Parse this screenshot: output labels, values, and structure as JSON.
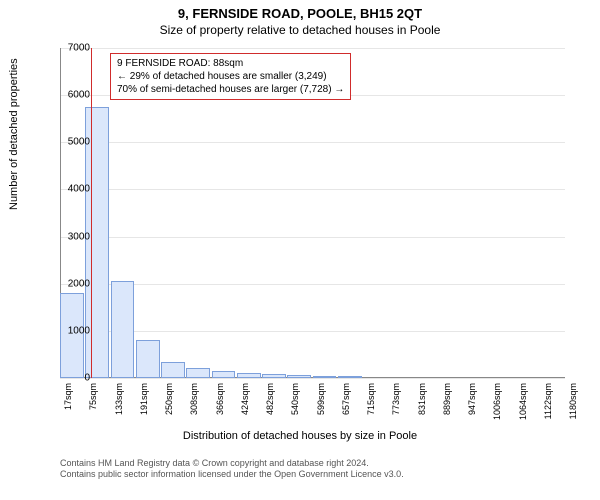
{
  "chart": {
    "type": "histogram",
    "title_main": "9, FERNSIDE ROAD, POOLE, BH15 2QT",
    "title_sub": "Size of property relative to detached houses in Poole",
    "y_label": "Number of detached properties",
    "x_label": "Distribution of detached houses by size in Poole",
    "background_color": "#ffffff",
    "grid_color": "#e6e6e6",
    "axis_color": "#888888",
    "bar_fill": "#dbe7fb",
    "bar_stroke": "#7da0db",
    "marker_color": "#d02c2c",
    "annotation_border": "#d02c2c",
    "ylim": [
      0,
      7000
    ],
    "y_ticks": [
      0,
      1000,
      2000,
      3000,
      4000,
      5000,
      6000,
      7000
    ],
    "x_tick_labels": [
      "17sqm",
      "75sqm",
      "133sqm",
      "191sqm",
      "250sqm",
      "308sqm",
      "366sqm",
      "424sqm",
      "482sqm",
      "540sqm",
      "599sqm",
      "657sqm",
      "715sqm",
      "773sqm",
      "831sqm",
      "889sqm",
      "947sqm",
      "1006sqm",
      "1064sqm",
      "1122sqm",
      "1180sqm"
    ],
    "values": [
      1800,
      5750,
      2050,
      800,
      350,
      220,
      150,
      100,
      75,
      60,
      50,
      50,
      0,
      0,
      0,
      0,
      0,
      0,
      0,
      0
    ],
    "marker_position_sqm": 88,
    "sqm_min": 17,
    "sqm_max": 1180,
    "annotation": {
      "line1": "9 FERNSIDE ROAD: 88sqm",
      "line2": "← 29% of detached houses are smaller (3,249)",
      "line3": "70% of semi-detached houses are larger (7,728) →"
    },
    "footnote_line1": "Contains HM Land Registry data © Crown copyright and database right 2024.",
    "footnote_line2": "Contains public sector information licensed under the Open Government Licence v3.0."
  }
}
